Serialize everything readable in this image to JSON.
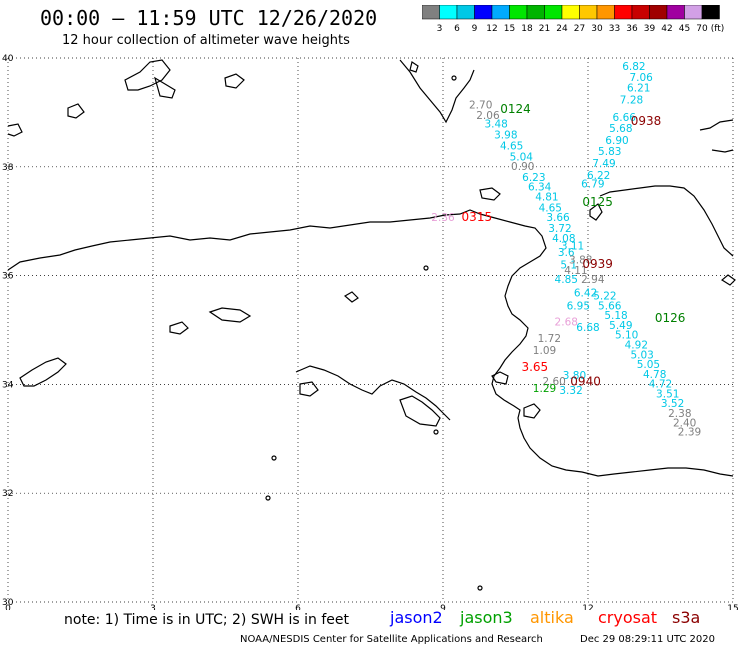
{
  "header": {
    "title": "00:00 – 11:59 UTC 12/26/2020",
    "subtitle": "12 hour collection of altimeter wave heights"
  },
  "colorbar": {
    "labels": [
      "3",
      "6",
      "9",
      "12",
      "15",
      "18",
      "21",
      "24",
      "27",
      "30",
      "33",
      "36",
      "39",
      "42",
      "45",
      "70"
    ],
    "unit": "(ft)",
    "colors": [
      "#808080",
      "#00ffff",
      "#00c8e6",
      "#0000ff",
      "#00aaff",
      "#00e600",
      "#00b400",
      "#00e600",
      "#ffff00",
      "#ffc800",
      "#ff9600",
      "#ff0000",
      "#c80000",
      "#a00000",
      "#a000a0",
      "#d2a0e6",
      "#000000"
    ]
  },
  "axes": {
    "lat_labels": [
      "40",
      "38",
      "36",
      "34",
      "32",
      "30"
    ],
    "lon_labels": [
      "0",
      "3",
      "6",
      "9",
      "12",
      "15"
    ]
  },
  "colors": {
    "cyan": "#00c8e6",
    "gray": "#808080",
    "pink": "#e8a0d8",
    "darkred": "#8b0000",
    "red": "#ff0000",
    "green": "#008000"
  },
  "satellites": [
    {
      "name": "jason2",
      "color": "#0000ff"
    },
    {
      "name": "jason3",
      "color": "#00a000"
    },
    {
      "name": "altika",
      "color": "#ff9600"
    },
    {
      "name": "cryosat",
      "color": "#ff0000"
    },
    {
      "name": "s3a",
      "color": "#8b0000"
    }
  ],
  "pass_labels": [
    {
      "text": "0124",
      "color": "#008000",
      "lon": 10.5,
      "lat": 38.99
    },
    {
      "text": "0938",
      "color": "#8b0000",
      "lon": 13.2,
      "lat": 38.77
    },
    {
      "text": "0315",
      "color": "#ff0000",
      "lon": 9.7,
      "lat": 37.0
    },
    {
      "text": "0125",
      "color": "#008000",
      "lon": 12.2,
      "lat": 37.28
    },
    {
      "text": "0939",
      "color": "#8b0000",
      "lon": 12.2,
      "lat": 36.14
    },
    {
      "text": "0126",
      "color": "#008000",
      "lon": 13.7,
      "lat": 35.15
    },
    {
      "text": "0940",
      "color": "#8b0000",
      "lon": 11.95,
      "lat": 33.98
    },
    {
      "text": "3.65",
      "color": "#ff0000",
      "lon": 10.9,
      "lat": 34.25
    }
  ],
  "tracks": [
    {
      "color": "#00c8e6",
      "points": [
        {
          "v": "3.48",
          "lon": 10.1,
          "lat": 38.72
        },
        {
          "v": "3.98",
          "lon": 10.3,
          "lat": 38.52
        },
        {
          "v": "4.65",
          "lon": 10.42,
          "lat": 38.32
        },
        {
          "v": "5.04",
          "lon": 10.62,
          "lat": 38.12
        },
        {
          "v": "6.23",
          "lon": 10.88,
          "lat": 37.74
        },
        {
          "v": "6.34",
          "lon": 11.0,
          "lat": 37.56
        },
        {
          "v": "4.81",
          "lon": 11.15,
          "lat": 37.38
        },
        {
          "v": "4.65",
          "lon": 11.22,
          "lat": 37.18
        },
        {
          "v": "3.66",
          "lon": 11.38,
          "lat": 37.0
        },
        {
          "v": "3.72",
          "lon": 11.42,
          "lat": 36.8
        },
        {
          "v": "4.08",
          "lon": 11.5,
          "lat": 36.62
        },
        {
          "v": "3.11",
          "lon": 11.68,
          "lat": 36.48
        },
        {
          "v": "3.6",
          "lon": 11.55,
          "lat": 36.36
        },
        {
          "v": "5.1",
          "lon": 11.6,
          "lat": 36.13
        },
        {
          "v": "4.85",
          "lon": 11.55,
          "lat": 35.86
        },
        {
          "v": "6.42",
          "lon": 11.95,
          "lat": 35.62
        },
        {
          "v": "6.95",
          "lon": 11.8,
          "lat": 35.38
        },
        {
          "v": "6.68",
          "lon": 12.0,
          "lat": 34.98
        },
        {
          "v": "3.80",
          "lon": 11.72,
          "lat": 34.1
        },
        {
          "v": "3.32",
          "lon": 11.65,
          "lat": 33.82
        }
      ]
    },
    {
      "color": "#00c8e6",
      "points": [
        {
          "v": "6.82",
          "lon": 12.95,
          "lat": 39.78
        },
        {
          "v": "7.06",
          "lon": 13.1,
          "lat": 39.58
        },
        {
          "v": "6.21",
          "lon": 13.05,
          "lat": 39.38
        },
        {
          "v": "7.28",
          "lon": 12.9,
          "lat": 39.16
        },
        {
          "v": "6.66",
          "lon": 12.75,
          "lat": 38.84
        },
        {
          "v": "5.68",
          "lon": 12.68,
          "lat": 38.64
        },
        {
          "v": "6.90",
          "lon": 12.6,
          "lat": 38.42
        },
        {
          "v": "5.83",
          "lon": 12.45,
          "lat": 38.22
        },
        {
          "v": "7.49",
          "lon": 12.33,
          "lat": 38.0
        },
        {
          "v": "6.22",
          "lon": 12.22,
          "lat": 37.78
        },
        {
          "v": "6.79",
          "lon": 12.1,
          "lat": 37.62
        },
        {
          "v": "5.22",
          "lon": 12.35,
          "lat": 35.56
        },
        {
          "v": "5.66",
          "lon": 12.45,
          "lat": 35.38
        },
        {
          "v": "5.18",
          "lon": 12.58,
          "lat": 35.2
        },
        {
          "v": "5.49",
          "lon": 12.68,
          "lat": 35.02
        },
        {
          "v": "5.10",
          "lon": 12.8,
          "lat": 34.84
        },
        {
          "v": "4.92",
          "lon": 13.0,
          "lat": 34.66
        },
        {
          "v": "5.03",
          "lon": 13.12,
          "lat": 34.48
        },
        {
          "v": "5.05",
          "lon": 13.25,
          "lat": 34.3
        },
        {
          "v": "4.78",
          "lon": 13.38,
          "lat": 34.12
        },
        {
          "v": "4.72",
          "lon": 13.5,
          "lat": 33.94
        },
        {
          "v": "3.51",
          "lon": 13.65,
          "lat": 33.76
        },
        {
          "v": "3.52",
          "lon": 13.75,
          "lat": 33.58
        }
      ]
    },
    {
      "color": "#808080",
      "points": [
        {
          "v": "2.70",
          "lon": 9.78,
          "lat": 39.07
        },
        {
          "v": "2.06",
          "lon": 9.93,
          "lat": 38.88
        },
        {
          "v": "0.90",
          "lon": 10.65,
          "lat": 37.94
        },
        {
          "v": "3.88",
          "lon": 11.85,
          "lat": 36.22
        },
        {
          "v": "4.11",
          "lon": 11.75,
          "lat": 36.03
        },
        {
          "v": "2.94",
          "lon": 12.1,
          "lat": 35.86
        },
        {
          "v": "1.72",
          "lon": 11.2,
          "lat": 34.78
        },
        {
          "v": "1.09",
          "lon": 11.1,
          "lat": 34.56
        },
        {
          "v": "2.60",
          "lon": 11.3,
          "lat": 33.99
        },
        {
          "v": "2.38",
          "lon": 13.9,
          "lat": 33.4
        },
        {
          "v": "2.40",
          "lon": 14.0,
          "lat": 33.23
        },
        {
          "v": "2.39",
          "lon": 14.1,
          "lat": 33.06
        }
      ]
    },
    {
      "color": "#e8a0d8",
      "points": [
        {
          "v": "2.36",
          "lon": 9.0,
          "lat": 37.0
        },
        {
          "v": "2.68",
          "lon": 11.55,
          "lat": 35.08
        }
      ]
    },
    {
      "color": "#00a000",
      "points": [
        {
          "v": "1.29",
          "lon": 11.1,
          "lat": 33.86
        }
      ]
    }
  ],
  "footer": {
    "note": "note:  1) Time is in UTC;  2) SWH is in feet",
    "center": "NOAA/NESDIS Center for Satellite Applications and Research",
    "timestamp": "Dec 29 08:29:11 UTC 2020"
  }
}
